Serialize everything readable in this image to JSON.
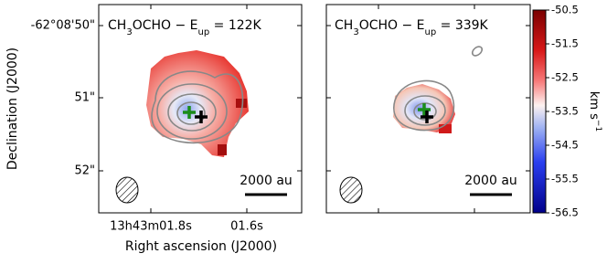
{
  "figure": {
    "y_label": "Declination (J2000)",
    "x_label": "Right ascension (J2000)",
    "y_tick_labels": [
      "-62°08'50\"",
      "51\"",
      "52\""
    ],
    "x_tick_labels": [
      "13h43m01.8s",
      "01.6s"
    ],
    "panels": [
      {
        "title": [
          "CH",
          "3",
          "OCHO − E",
          "up",
          " = 122K"
        ],
        "scalebar": "2000 au"
      },
      {
        "title": [
          "CH",
          "3",
          "OCHO − E",
          "up",
          " = 339K"
        ],
        "scalebar": "2000 au"
      }
    ],
    "colorbar": {
      "label": [
        "km s",
        "−1"
      ],
      "lim": [
        -56.5,
        -50.5
      ],
      "ticks": [
        -50.5,
        -51.5,
        -52.5,
        -53.5,
        -54.5,
        -55.5,
        -56.5
      ]
    }
  }
}
